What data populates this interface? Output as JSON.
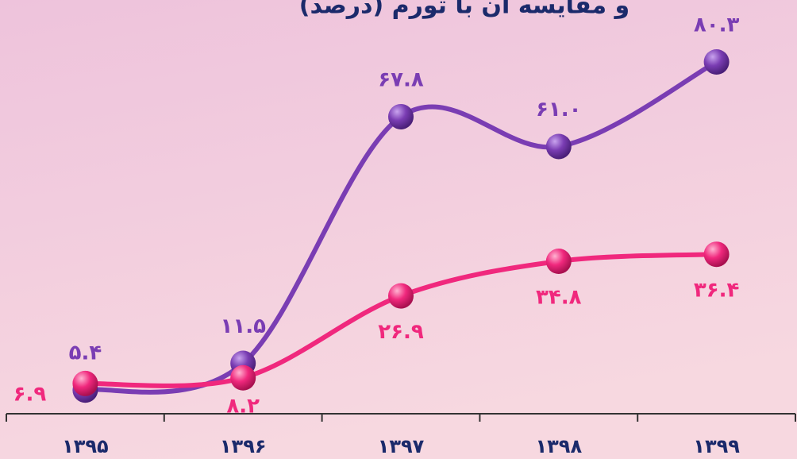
{
  "chart_data": {
    "type": "line",
    "title": "و مقایسه آن با تورم (درصد)",
    "categories": [
      "۱۳۹۵",
      "۱۳۹۶",
      "۱۳۹۷",
      "۱۳۹۸",
      "۱۳۹۹"
    ],
    "series": [
      {
        "color": "#7a3db3",
        "values": [
          5.4,
          11.5,
          67.8,
          61.0,
          80.3
        ],
        "value_labels": [
          "۵.۴",
          "۱۱.۵",
          "۶۷.۸",
          "۶۱.۰",
          "۸۰.۳"
        ]
      },
      {
        "color": "#f0287d",
        "values": [
          6.9,
          8.2,
          26.9,
          34.8,
          36.4
        ],
        "value_labels": [
          "۶.۹",
          "۸.۲",
          "۲۶.۹",
          "۳۴.۸",
          "۳۶.۴"
        ]
      }
    ]
  }
}
